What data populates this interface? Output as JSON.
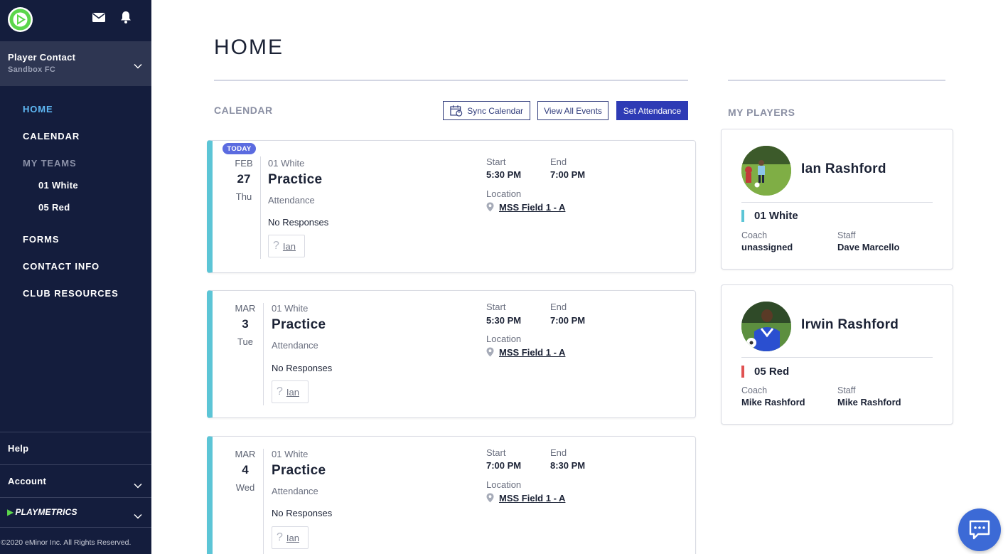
{
  "sidebar": {
    "user_name": "Player Contact",
    "club_name": "Sandbox FC",
    "nav": {
      "home": "HOME",
      "calendar": "CALENDAR",
      "my_teams": "MY TEAMS",
      "teams": [
        "01 White",
        "05 Red"
      ],
      "forms": "FORMS",
      "contact_info": "CONTACT INFO",
      "club_resources": "CLUB RESOURCES"
    },
    "help": "Help",
    "account": "Account",
    "brand": "PLAYMETRICS",
    "copyright": "©2020 eMinor Inc. All Rights Reserved."
  },
  "page": {
    "title": "HOME"
  },
  "calendar": {
    "section_title": "CALENDAR",
    "sync_label": "Sync Calendar",
    "view_all_label": "View All Events",
    "set_attendance_label": "Set Attendance",
    "today_badge": "TODAY",
    "events": [
      {
        "month": "FEB",
        "day": "27",
        "dow": "Thu",
        "team": "01 White",
        "type": "Practice",
        "attendance_label": "Attendance",
        "responses": "No Responses",
        "player": "Ian",
        "start_label": "Start",
        "start": "5:30 PM",
        "end_label": "End",
        "end": "7:00 PM",
        "location_label": "Location",
        "location": "MSS Field 1 - A"
      },
      {
        "month": "MAR",
        "day": "3",
        "dow": "Tue",
        "team": "01 White",
        "type": "Practice",
        "attendance_label": "Attendance",
        "responses": "No Responses",
        "player": "Ian",
        "start_label": "Start",
        "start": "5:30 PM",
        "end_label": "End",
        "end": "7:00 PM",
        "location_label": "Location",
        "location": "MSS Field 1 - A"
      },
      {
        "month": "MAR",
        "day": "4",
        "dow": "Wed",
        "team": "01 White",
        "type": "Practice",
        "attendance_label": "Attendance",
        "responses": "No Responses",
        "player": "Ian",
        "start_label": "Start",
        "start": "7:00 PM",
        "end_label": "End",
        "end": "8:30 PM",
        "location_label": "Location",
        "location": "MSS Field 1 - A"
      }
    ]
  },
  "players": {
    "section_title": "MY PLAYERS",
    "list": [
      {
        "name": "Ian Rashford",
        "team": "01 White",
        "team_color": "#5cc5d6",
        "coach_label": "Coach",
        "coach": "unassigned",
        "staff_label": "Staff",
        "staff": "Dave Marcello"
      },
      {
        "name": "Irwin Rashford",
        "team": "05 Red",
        "team_color": "#e05252",
        "coach_label": "Coach",
        "coach": "Mike Rashford",
        "staff_label": "Staff",
        "staff": "Mike Rashford"
      }
    ]
  },
  "colors": {
    "sidebar_bg": "#141d3d",
    "accent_active": "#5fb9f5",
    "primary_button": "#2e3bb5",
    "event_stripe": "#5cc5d6",
    "chat_button": "#3c6ad6"
  }
}
